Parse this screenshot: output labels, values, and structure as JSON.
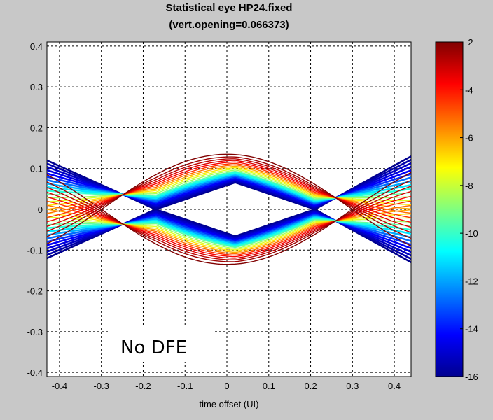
{
  "chart_data": {
    "type": "line",
    "title": "Statistical eye HP24.fixed",
    "subtitle": "(vert.opening=0.066373)",
    "xlabel": "time offset (UI)",
    "ylabel": "",
    "xlim": [
      -0.43,
      0.44
    ],
    "ylim": [
      -0.41,
      0.41
    ],
    "x_ticks": [
      -0.4,
      -0.3,
      -0.2,
      -0.1,
      0,
      0.1,
      0.2,
      0.3,
      0.4
    ],
    "x_tick_labels": [
      "-0.4",
      "-0.3",
      "-0.2",
      "-0.1",
      "0",
      "0.1",
      "0.2",
      "0.3",
      "0.4"
    ],
    "y_ticks": [
      0.4,
      0.3,
      0.2,
      0.1,
      0,
      -0.1,
      -0.2,
      -0.3,
      -0.4
    ],
    "y_tick_labels": [
      "0.4",
      "0.3",
      "0.2",
      "0.1",
      "0",
      "-0.1",
      "-0.2",
      "-0.3",
      "-0.4"
    ],
    "grid": true,
    "annotation": "No DFE",
    "colorbar": {
      "range": [
        -16,
        -2
      ],
      "ticks": [
        "-2",
        "-4",
        "-6",
        "-8",
        "-10",
        "-12",
        "-14",
        "-16"
      ],
      "colormap": "jet"
    },
    "eye": {
      "vertical_opening": 0.066373,
      "center_x": 0.02,
      "crossing_x": [
        -0.17,
        0.21
      ],
      "blue_inner_edge": [
        {
          "x": -0.43,
          "y": 0.12
        },
        {
          "x": -0.17,
          "y": 0.0
        },
        {
          "x": 0.02,
          "y": 0.066
        },
        {
          "x": 0.21,
          "y": 0.0
        },
        {
          "x": 0.44,
          "y": 0.13
        }
      ],
      "outer_contour_peak": 0.135,
      "outer_contour_crossings_x": [
        -0.3,
        0.3
      ]
    }
  },
  "colors": {
    "background": "#c8c8c8",
    "plot_background": "#ffffff",
    "colormap_stops": [
      "#00008f",
      "#0000ff",
      "#00ffff",
      "#ffff00",
      "#ff0000",
      "#800000"
    ]
  }
}
